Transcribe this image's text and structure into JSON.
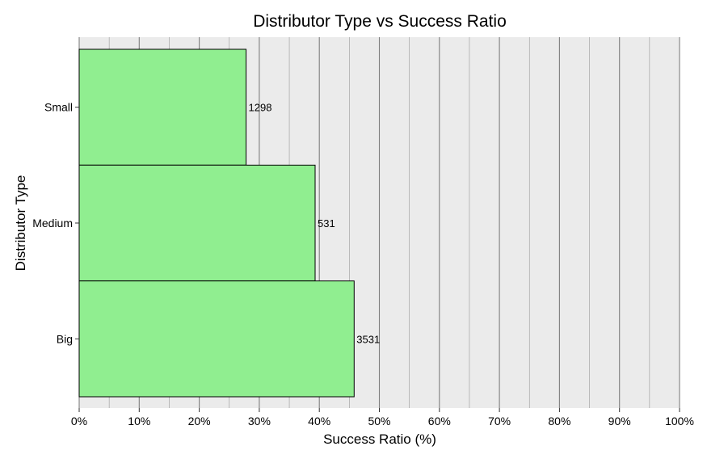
{
  "chart_data": {
    "type": "bar",
    "orientation": "horizontal",
    "title": "Distributor Type vs Success Ratio",
    "xlabel": "Success Ratio (%)",
    "ylabel": "Distributor Type",
    "categories": [
      "Small",
      "Medium",
      "Big"
    ],
    "values": [
      27.8,
      39.3,
      45.8
    ],
    "data_labels": [
      "1298",
      "531",
      "3531"
    ],
    "xlim": [
      0,
      100
    ],
    "x_ticks": [
      "0%",
      "10%",
      "20%",
      "30%",
      "40%",
      "50%",
      "60%",
      "70%",
      "80%",
      "90%",
      "100%"
    ],
    "grid": true,
    "colors": {
      "bar_fill": "#90EE90",
      "bar_stroke": "#000000",
      "panel_bg": "#EBEBEB",
      "grid_major": "#7F7F7F",
      "grid_minor": "#9A9A9A"
    }
  }
}
